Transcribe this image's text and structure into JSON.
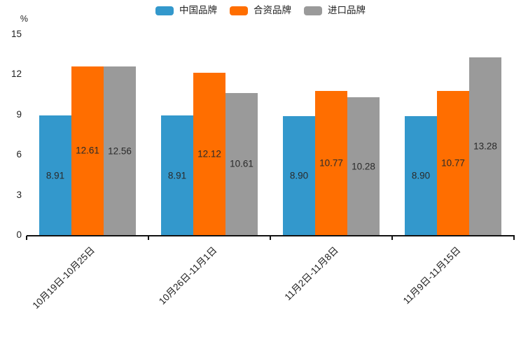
{
  "chart_data": {
    "type": "bar",
    "title": "",
    "ylabel": "%",
    "categories": [
      "10月19日-10月25日",
      "10月26日-11月1日",
      "11月2日-11月8日",
      "11月9日-11月15日"
    ],
    "series": [
      {
        "name": "中国品牌",
        "color": "#3398CC",
        "values": [
          8.91,
          8.91,
          8.9,
          8.9
        ]
      },
      {
        "name": "合资品牌",
        "color": "#FF6E00",
        "values": [
          12.61,
          12.12,
          10.77,
          10.77
        ]
      },
      {
        "name": "进口品牌",
        "color": "#9A9A9A",
        "values": [
          12.56,
          10.61,
          10.28,
          13.28
        ]
      }
    ],
    "yticks": [
      0,
      3,
      6,
      9,
      12,
      15
    ],
    "ylim": [
      0,
      15
    ],
    "grid": false,
    "legend_position": "top-center",
    "value_label_position": "bar-center",
    "value_label_decimals": 2,
    "xtick_rotation_deg": 45,
    "axis_color": "#111111",
    "text_color": "#1f1f1f"
  }
}
